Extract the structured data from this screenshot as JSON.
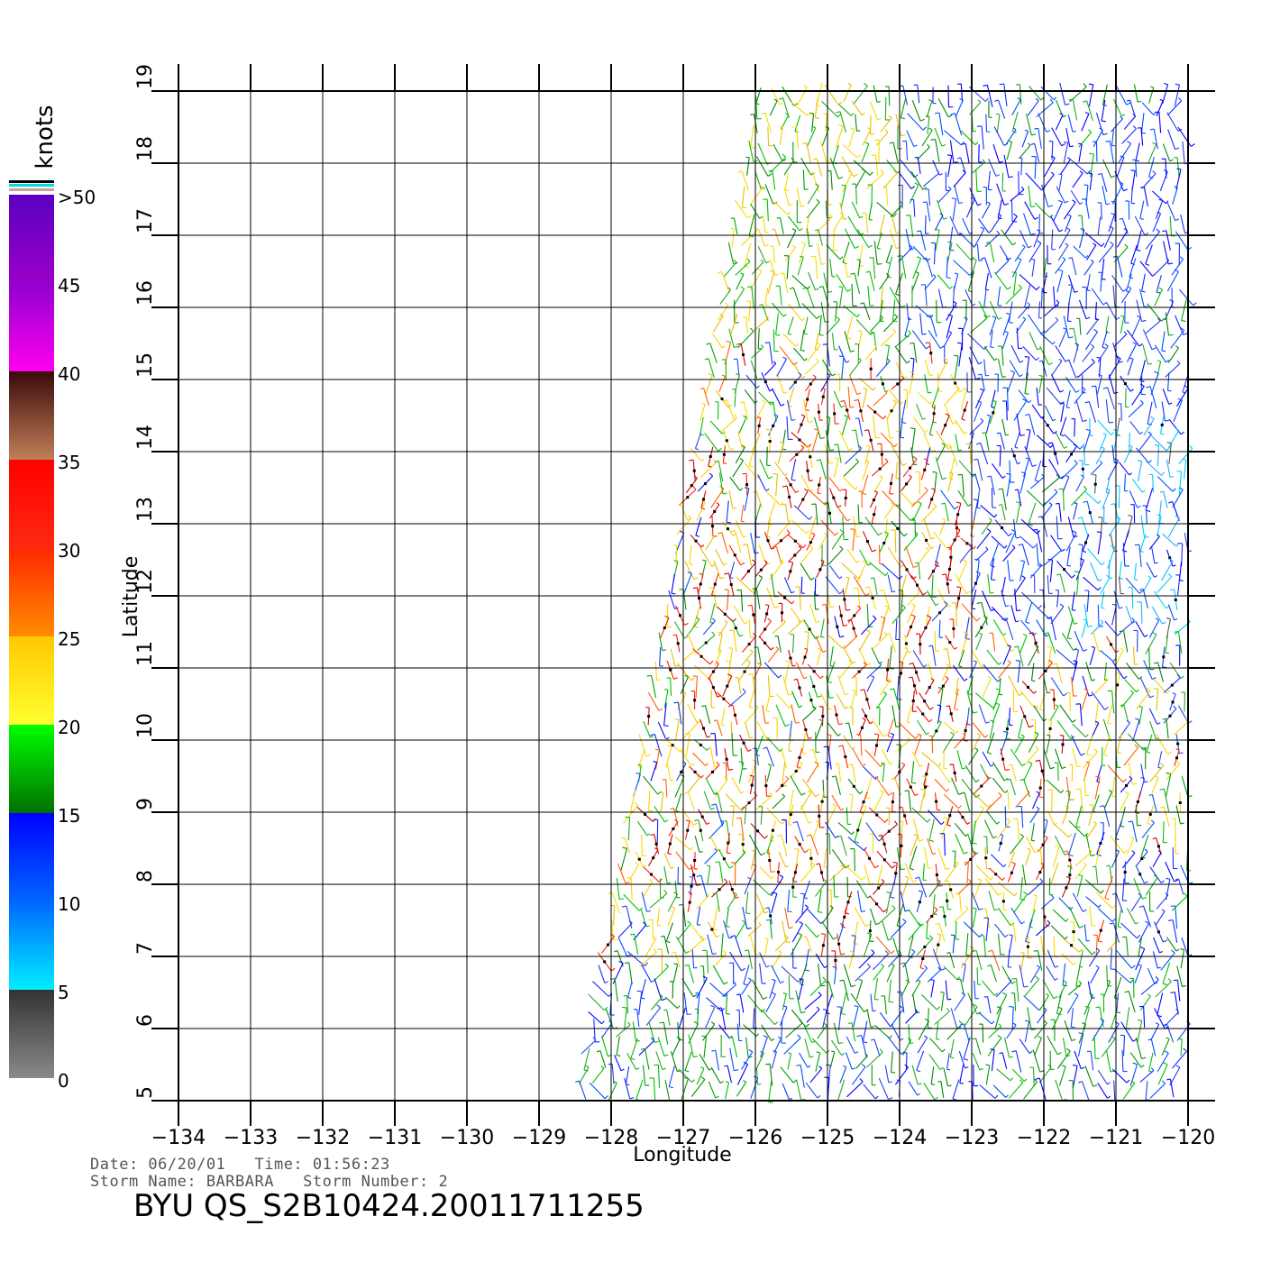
{
  "map": {
    "xlabel": "Longitude",
    "ylabel": "Latitude",
    "lon_range": [
      -134,
      -120
    ],
    "lat_range": [
      5,
      19
    ],
    "lon_ticks": [
      "−134",
      "−133",
      "−132",
      "−131",
      "−130",
      "−129",
      "−128",
      "−127",
      "−126",
      "−125",
      "−124",
      "−123",
      "−122",
      "−121",
      "−120"
    ],
    "lat_ticks": [
      "5",
      "6",
      "7",
      "8",
      "9",
      "10",
      "11",
      "12",
      "13",
      "14",
      "15",
      "16",
      "17",
      "18",
      "19"
    ],
    "swath_edge": {
      "bottom_lon": -128.5,
      "top_lon": -126.0
    }
  },
  "colorbar": {
    "unit_label": "knots",
    "labels": [
      "0",
      "5",
      "10",
      "15",
      "20",
      "25",
      "30",
      "35",
      "40",
      "45",
      ">50"
    ],
    "bands": [
      {
        "from": 0,
        "to": 5,
        "top": "#333333",
        "bottom": "#8a8a8a"
      },
      {
        "from": 5,
        "to": 10,
        "top": "#0066ff",
        "bottom": "#00eeff"
      },
      {
        "from": 10,
        "to": 15,
        "top": "#0000ff",
        "bottom": "#0066ff"
      },
      {
        "from": 15,
        "to": 20,
        "top": "#00ff00",
        "bottom": "#007000"
      },
      {
        "from": 20,
        "to": 25,
        "top": "#ffc800",
        "bottom": "#ffff30"
      },
      {
        "from": 25,
        "to": 30,
        "top": "#ff2800",
        "bottom": "#ff8c00"
      },
      {
        "from": 30,
        "to": 35,
        "top": "#ff0000",
        "bottom": "#ff2a10"
      },
      {
        "from": 35,
        "to": 40,
        "top": "#3a0a0a",
        "bottom": "#c08058"
      },
      {
        "from": 40,
        "to": 45,
        "top": "#9000d0",
        "bottom": "#ff00ee"
      },
      {
        "from": 45,
        "to": 50,
        "top": "#5a00c0",
        "bottom": "#9a00c8"
      }
    ]
  },
  "info": {
    "line1": "Date: 06/20/01   Time: 01:56:23",
    "line2": "Storm Name: BARBARA   Storm Number: 2",
    "title": "BYU QS_S2B10424.20011711255"
  }
}
